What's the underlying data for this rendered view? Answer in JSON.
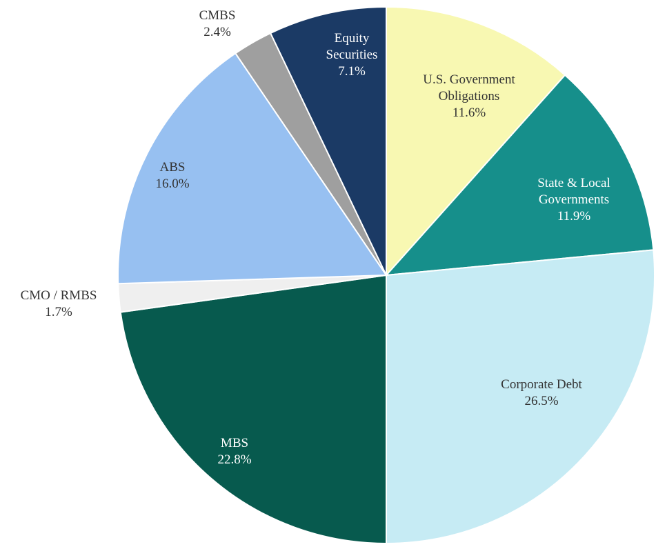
{
  "chart_data": {
    "type": "pie",
    "categories": [
      "U.S. Government Obligations",
      "State & Local Governments",
      "Corporate Debt",
      "MBS",
      "CMO / RMBS",
      "ABS",
      "CMBS",
      "Equity Securities"
    ],
    "values": [
      11.6,
      11.9,
      26.5,
      22.8,
      1.7,
      16.0,
      2.4,
      7.1
    ],
    "value_labels": [
      "11.6%",
      "11.9%",
      "26.5%",
      "22.8%",
      "1.7%",
      "16.0%",
      "2.4%",
      "7.1%"
    ],
    "colors": [
      "#f8f8b2",
      "#168f8b",
      "#c6ebf4",
      "#075a4e",
      "#efefef",
      "#97c0f1",
      "#9f9f9f",
      "#1b3a65"
    ]
  }
}
